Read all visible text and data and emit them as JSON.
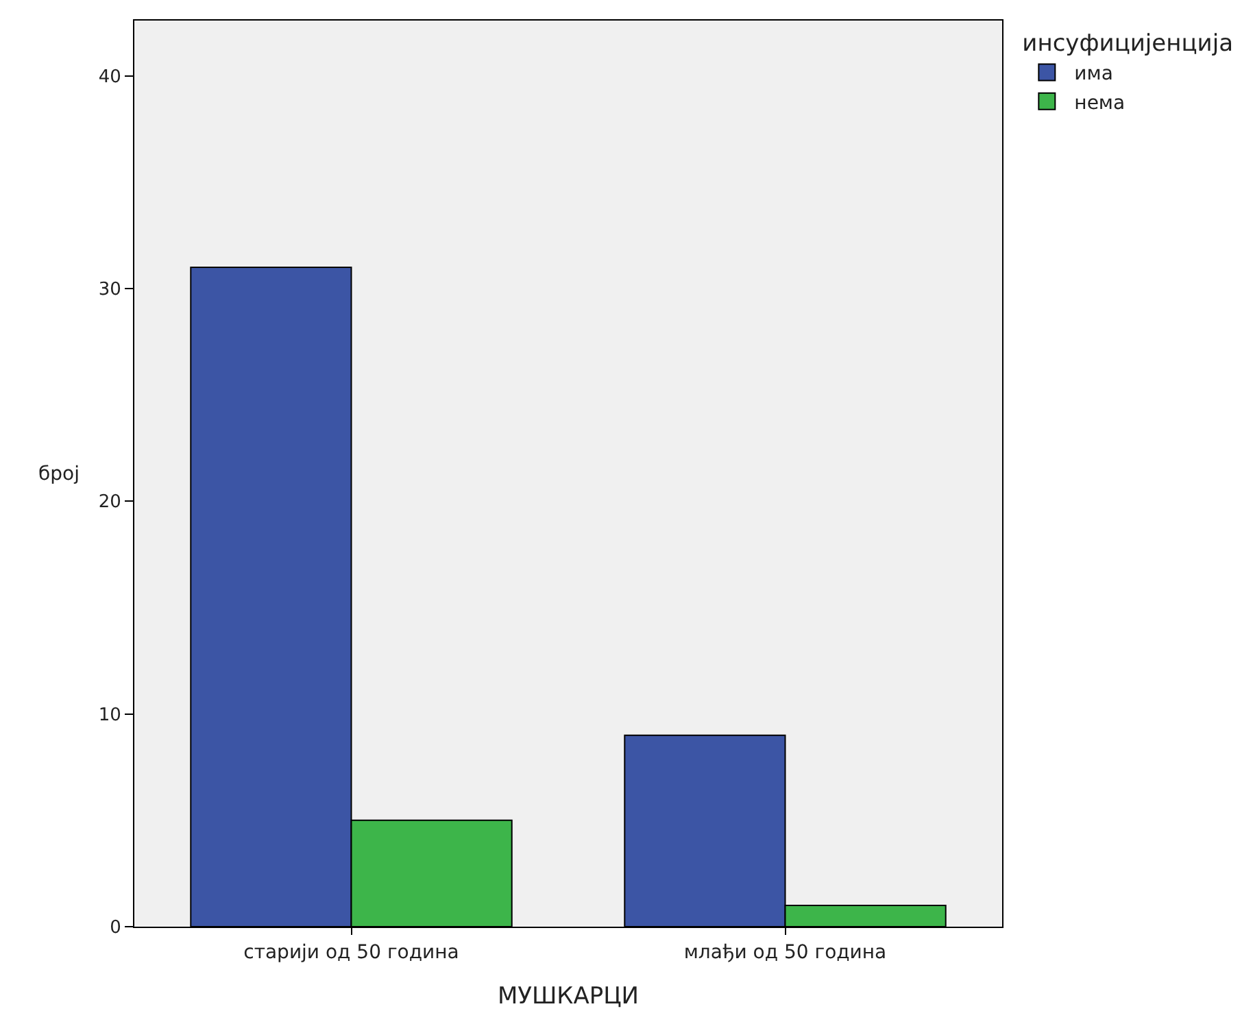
{
  "chart_data": {
    "type": "bar",
    "xlabel": "МУШКАРЦИ",
    "ylabel": "број",
    "legend_title": "инсуфицијенција",
    "categories": [
      "старији од 50 година",
      "млађи од 50 година"
    ],
    "series": [
      {
        "name": "има",
        "color": "#3c55a5",
        "values": [
          31,
          9
        ]
      },
      {
        "name": "нема",
        "color": "#3db54a",
        "values": [
          5,
          1
        ]
      }
    ],
    "ylim": [
      0,
      42.6
    ],
    "yticks": [
      0,
      10,
      20,
      30,
      40
    ],
    "grid": false,
    "legend": "top right"
  }
}
